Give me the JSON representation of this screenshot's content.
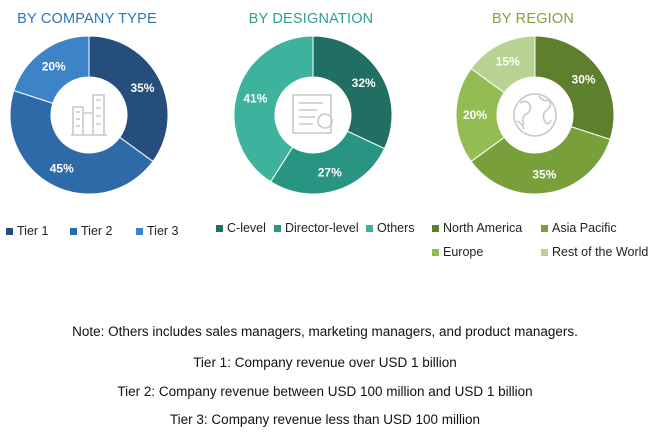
{
  "colors": {
    "title_blue": "#2e75b6",
    "title_teal": "#2ea08c",
    "title_green": "#7ca03c",
    "icon_gray": "#c8c8c8",
    "label_white": "#ffffff",
    "label_dark": "#1f2f3f"
  },
  "chart_data": [
    {
      "type": "pie",
      "title": "BY COMPANY TYPE",
      "donut": true,
      "icon": "buildings-icon",
      "categories": [
        "Tier 1",
        "Tier 2",
        "Tier 3"
      ],
      "values": [
        35,
        45,
        20
      ],
      "labels": [
        "35%",
        "45%",
        "20%"
      ],
      "colors": [
        "#264e7d",
        "#2e6aa8",
        "#3c84c7"
      ],
      "legend_placement": "bottom"
    },
    {
      "type": "pie",
      "title": "BY DESIGNATION",
      "donut": true,
      "icon": "certificate-icon",
      "categories": [
        "C-level",
        "Director-level",
        "Others"
      ],
      "values": [
        32,
        27,
        41
      ],
      "labels": [
        "32%",
        "27%",
        "41%"
      ],
      "colors": [
        "#216f62",
        "#289582",
        "#3db39e"
      ],
      "legend_placement": "bottom"
    },
    {
      "type": "pie",
      "title": "BY REGION",
      "donut": true,
      "icon": "globe-icon",
      "categories": [
        "North America",
        "Asia Pacific",
        "Europe",
        "Rest of the World"
      ],
      "values": [
        30,
        35,
        20,
        15
      ],
      "labels": [
        "30%",
        "35%",
        "20%",
        "15%"
      ],
      "colors": [
        "#5e7f2c",
        "#789f3a",
        "#93bd52",
        "#b8d291"
      ],
      "legend_placement": "bottom"
    }
  ],
  "notes": [
    "Note: Others includes sales managers, marketing managers, and product managers.",
    "Tier 1: Company revenue over USD 1 billion",
    "Tier 2: Company revenue between USD 100 million and USD 1 billion",
    "Tier 3: Company revenue less than USD 100 million"
  ]
}
